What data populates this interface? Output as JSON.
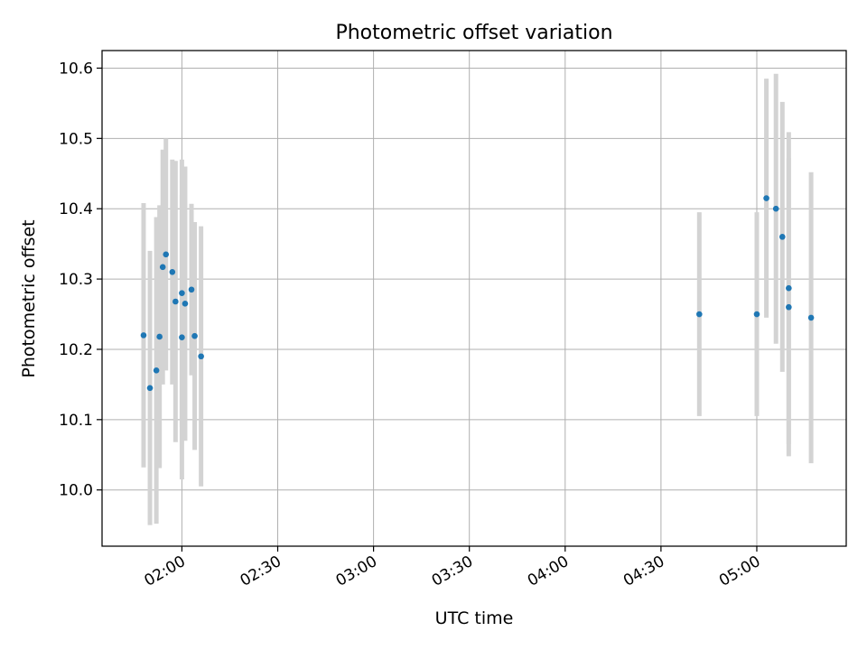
{
  "chart_data": {
    "type": "scatter",
    "title": "Photometric offset variation",
    "xlabel": "UTC time",
    "ylabel": "Photometric offset",
    "xlim": [
      "01:35",
      "05:28"
    ],
    "ylim": [
      9.92,
      10.625
    ],
    "x_ticks": [
      "02:00",
      "02:30",
      "03:00",
      "03:30",
      "04:00",
      "04:30",
      "05:00"
    ],
    "y_ticks": [
      "10.0",
      "10.1",
      "10.2",
      "10.3",
      "10.4",
      "10.5",
      "10.6"
    ],
    "grid": true,
    "colors": {
      "point": "#1f77b4",
      "errorbar": "#d3d3d3",
      "grid": "#b0b0b0",
      "axes": "#000000"
    },
    "points": [
      {
        "x": "01:48",
        "y": 10.22,
        "yerr": 0.188
      },
      {
        "x": "01:50",
        "y": 10.145,
        "yerr": 0.195
      },
      {
        "x": "01:52",
        "y": 10.17,
        "yerr": 0.218
      },
      {
        "x": "01:53",
        "y": 10.218,
        "yerr": 0.187
      },
      {
        "x": "01:54",
        "y": 10.317,
        "yerr": 0.167
      },
      {
        "x": "01:55",
        "y": 10.335,
        "yerr": 0.165
      },
      {
        "x": "01:57",
        "y": 10.31,
        "yerr": 0.16
      },
      {
        "x": "01:58",
        "y": 10.268,
        "yerr": 0.2
      },
      {
        "x": "02:00",
        "y": 10.217,
        "yerr": 0.202
      },
      {
        "x": "02:00",
        "y": 10.28,
        "yerr": 0.19
      },
      {
        "x": "02:01",
        "y": 10.265,
        "yerr": 0.195
      },
      {
        "x": "02:03",
        "y": 10.285,
        "yerr": 0.122
      },
      {
        "x": "02:04",
        "y": 10.219,
        "yerr": 0.162
      },
      {
        "x": "02:06",
        "y": 10.19,
        "yerr": 0.185
      },
      {
        "x": "04:42",
        "y": 10.25,
        "yerr": 0.145
      },
      {
        "x": "05:00",
        "y": 10.25,
        "yerr": 0.145
      },
      {
        "x": "05:03",
        "y": 10.415,
        "yerr": 0.17
      },
      {
        "x": "05:06",
        "y": 10.4,
        "yerr": 0.192
      },
      {
        "x": "05:08",
        "y": 10.36,
        "yerr": 0.192
      },
      {
        "x": "05:10",
        "y": 10.287,
        "yerr": 0.222
      },
      {
        "x": "05:10",
        "y": 10.26,
        "yerr": 0.212
      },
      {
        "x": "05:17",
        "y": 10.245,
        "yerr": 0.207
      }
    ]
  }
}
